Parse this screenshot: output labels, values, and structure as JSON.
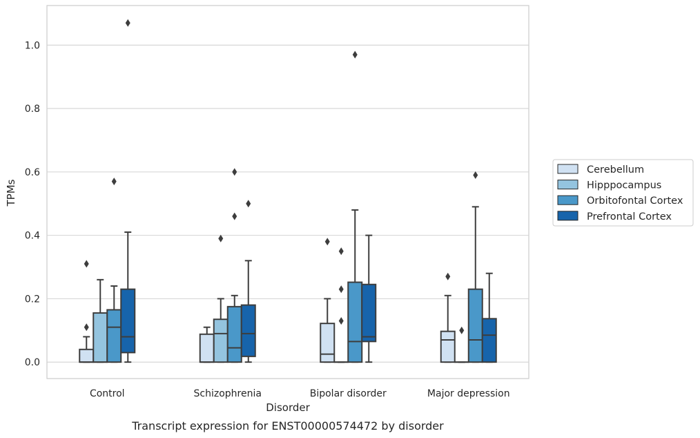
{
  "chart_data": {
    "type": "boxplot",
    "title": "",
    "caption": "Transcript expression for ENST00000574472 by disorder",
    "xlabel": "Disorder",
    "ylabel": "TPMs",
    "ylim": [
      -0.052,
      1.125
    ],
    "yticks": [
      0.0,
      0.2,
      0.4,
      0.6,
      0.8,
      1.0
    ],
    "ytick_labels": [
      "0.0",
      "0.2",
      "0.4",
      "0.6",
      "0.8",
      "1.0"
    ],
    "categories": [
      "Control",
      "Schizophrenia",
      "Bipolar disorder",
      "Major depression"
    ],
    "grid": "horizontal",
    "legend_position": "right",
    "series": [
      {
        "name": "Cerebellum",
        "color": "#d0e1f2",
        "boxes": [
          {
            "whislo": 0.0,
            "q1": 0.0,
            "med": 0.0,
            "q3": 0.04,
            "whishi": 0.08,
            "fliers": [
              0.11,
              0.31
            ]
          },
          {
            "whislo": 0.0,
            "q1": 0.0,
            "med": 0.0,
            "q3": 0.088,
            "whishi": 0.11,
            "fliers": []
          },
          {
            "whislo": 0.0,
            "q1": 0.0,
            "med": 0.025,
            "q3": 0.122,
            "whishi": 0.2,
            "fliers": [
              0.38
            ]
          },
          {
            "whislo": 0.0,
            "q1": 0.0,
            "med": 0.07,
            "q3": 0.097,
            "whishi": 0.21,
            "fliers": [
              0.27
            ]
          }
        ]
      },
      {
        "name": "Hipppocampus",
        "color": "#94c4df",
        "boxes": [
          {
            "whislo": 0.0,
            "q1": 0.0,
            "med": 0.0,
            "q3": 0.155,
            "whishi": 0.26,
            "fliers": []
          },
          {
            "whislo": 0.0,
            "q1": 0.0,
            "med": 0.09,
            "q3": 0.135,
            "whishi": 0.2,
            "fliers": [
              0.39
            ]
          },
          {
            "whislo": 0.0,
            "q1": 0.0,
            "med": 0.0,
            "q3": 0.0,
            "whishi": 0.0,
            "fliers": [
              0.13,
              0.23,
              0.35
            ]
          },
          {
            "whislo": 0.0,
            "q1": 0.0,
            "med": 0.0,
            "q3": 0.0,
            "whishi": 0.0,
            "fliers": [
              0.1
            ]
          }
        ]
      },
      {
        "name": "Orbitofontal Cortex",
        "color": "#4a98c9",
        "boxes": [
          {
            "whislo": 0.0,
            "q1": 0.0,
            "med": 0.11,
            "q3": 0.165,
            "whishi": 0.24,
            "fliers": [
              0.57
            ]
          },
          {
            "whislo": 0.0,
            "q1": 0.0,
            "med": 0.045,
            "q3": 0.175,
            "whishi": 0.21,
            "fliers": [
              0.46,
              0.6
            ]
          },
          {
            "whislo": 0.0,
            "q1": 0.0,
            "med": 0.065,
            "q3": 0.252,
            "whishi": 0.48,
            "fliers": [
              0.97
            ]
          },
          {
            "whislo": 0.0,
            "q1": 0.0,
            "med": 0.07,
            "q3": 0.23,
            "whishi": 0.49,
            "fliers": [
              0.59
            ]
          }
        ]
      },
      {
        "name": "Prefrontal Cortex",
        "color": "#1764ab",
        "boxes": [
          {
            "whislo": 0.0,
            "q1": 0.03,
            "med": 0.08,
            "q3": 0.23,
            "whishi": 0.41,
            "fliers": [
              1.07
            ]
          },
          {
            "whislo": 0.0,
            "q1": 0.018,
            "med": 0.09,
            "q3": 0.18,
            "whishi": 0.32,
            "fliers": [
              0.5
            ]
          },
          {
            "whislo": 0.0,
            "q1": 0.065,
            "med": 0.08,
            "q3": 0.245,
            "whishi": 0.4,
            "fliers": []
          },
          {
            "whislo": 0.0,
            "q1": 0.0,
            "med": 0.085,
            "q3": 0.137,
            "whishi": 0.28,
            "fliers": []
          }
        ]
      }
    ]
  }
}
